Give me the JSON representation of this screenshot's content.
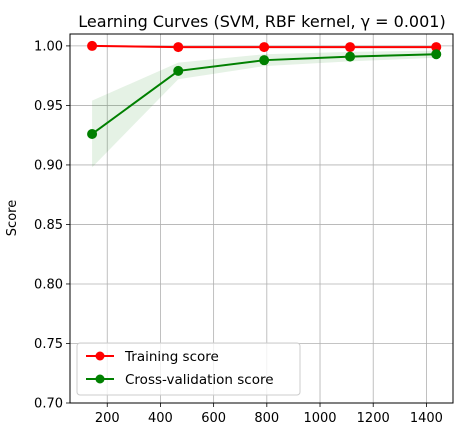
{
  "chart_data": {
    "type": "line",
    "title": "Learning Curves (SVM, RBF kernel, γ = 0.001)",
    "xlabel": "",
    "ylabel": "Score",
    "xlim": [
      60,
      1500
    ],
    "ylim": [
      0.7,
      1.01
    ],
    "xticks": [
      200,
      400,
      600,
      800,
      1000,
      1200,
      1400
    ],
    "yticks": [
      0.7,
      0.75,
      0.8,
      0.85,
      0.9,
      0.95,
      1.0
    ],
    "xtick_labels": [
      "200",
      "400",
      "600",
      "800",
      "1000",
      "1200",
      "1400"
    ],
    "ytick_labels": [
      "0.70",
      "0.75",
      "0.80",
      "0.85",
      "0.90",
      "0.95",
      "1.00"
    ],
    "grid": true,
    "legend_position": "lower-left",
    "x": [
      143,
      467,
      790,
      1113,
      1437
    ],
    "series": [
      {
        "name": "Training score",
        "color": "#ff0000",
        "values": [
          1.0,
          0.999,
          0.999,
          0.999,
          0.999
        ],
        "band_low": [
          0.999,
          0.998,
          0.998,
          0.998,
          0.998
        ],
        "band_high": [
          1.0,
          1.0,
          1.0,
          1.0,
          1.0
        ]
      },
      {
        "name": "Cross-validation score",
        "color": "#008000",
        "values": [
          0.926,
          0.979,
          0.988,
          0.991,
          0.993
        ],
        "band_low": [
          0.898,
          0.972,
          0.983,
          0.987,
          0.99
        ],
        "band_high": [
          0.954,
          0.986,
          0.993,
          0.995,
          0.996
        ]
      }
    ]
  }
}
